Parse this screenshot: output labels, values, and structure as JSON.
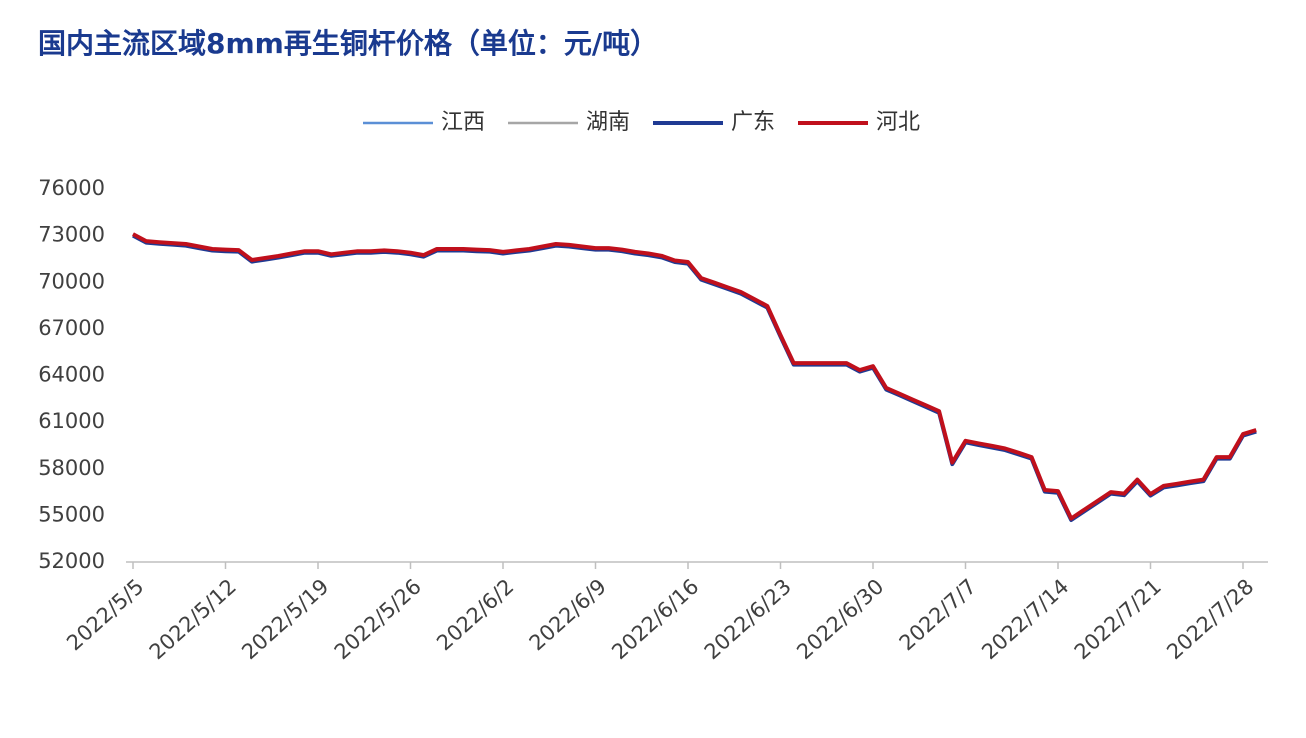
{
  "chart_data": {
    "type": "line",
    "title": "国内主流区域8mm再生铜杆价格（单位：元/吨）",
    "categories": [
      "2022/5/5",
      null,
      null,
      null,
      null,
      null,
      null,
      "2022/5/12",
      null,
      null,
      null,
      null,
      null,
      null,
      "2022/5/19",
      null,
      null,
      null,
      null,
      null,
      null,
      "2022/5/26",
      null,
      null,
      null,
      null,
      null,
      null,
      "2022/6/2",
      null,
      null,
      null,
      null,
      null,
      null,
      "2022/6/9",
      null,
      null,
      null,
      null,
      null,
      null,
      "2022/6/16",
      null,
      null,
      null,
      null,
      null,
      null,
      "2022/6/23",
      null,
      null,
      null,
      null,
      null,
      null,
      "2022/6/30",
      null,
      null,
      null,
      null,
      null,
      null,
      "2022/7/7",
      null,
      null,
      null,
      null,
      null,
      null,
      "2022/7/14",
      null,
      null,
      null,
      null,
      null,
      null,
      "2022/7/21",
      null,
      null,
      null,
      null,
      null,
      null,
      "2022/7/28",
      null
    ],
    "series": [
      {
        "name": "江西",
        "color": "#5b8fd6",
        "values": [
          73100,
          72650,
          72580,
          72520,
          72460,
          72300,
          72140,
          72100,
          72070,
          71430,
          71560,
          71690,
          71850,
          72000,
          72000,
          71800,
          71900,
          72000,
          72000,
          72050,
          72000,
          71900,
          71750,
          72140,
          72140,
          72140,
          72100,
          72070,
          71950,
          72050,
          72140,
          72300,
          72460,
          72400,
          72300,
          72200,
          72200,
          72100,
          71950,
          71850,
          71700,
          71400,
          71300,
          70270,
          69970,
          69670,
          69370,
          68920,
          68470,
          66600,
          64800,
          64800,
          64800,
          64800,
          64800,
          64350,
          64600,
          63200,
          62830,
          62450,
          62080,
          61700,
          58400,
          59800,
          59630,
          59470,
          59300,
          59030,
          58750,
          56630,
          56560,
          54800,
          55370,
          55930,
          56500,
          56400,
          57300,
          56370,
          56900,
          57030,
          57170,
          57300,
          58750,
          58750,
          60230,
          60490
        ]
      },
      {
        "name": "湖南",
        "color": "#a6a6a6",
        "values": [
          73100,
          72650,
          72580,
          72520,
          72460,
          72300,
          72140,
          72100,
          72070,
          71430,
          71560,
          71690,
          71850,
          72000,
          72000,
          71800,
          71900,
          72000,
          72000,
          72050,
          72000,
          71900,
          71750,
          72140,
          72140,
          72140,
          72100,
          72070,
          71950,
          72050,
          72140,
          72300,
          72460,
          72400,
          72300,
          72200,
          72200,
          72100,
          71950,
          71850,
          71700,
          71400,
          71300,
          70270,
          69970,
          69670,
          69370,
          68920,
          68470,
          66600,
          64800,
          64800,
          64800,
          64800,
          64800,
          64350,
          64600,
          63200,
          62830,
          62450,
          62080,
          61700,
          58400,
          59800,
          59630,
          59470,
          59300,
          59030,
          58750,
          56630,
          56560,
          54800,
          55370,
          55930,
          56500,
          56400,
          57300,
          56370,
          56900,
          57030,
          57170,
          57300,
          58750,
          58750,
          60230,
          60490
        ]
      },
      {
        "name": "广东",
        "color": "#1f3a93",
        "values": [
          73000,
          72550,
          72480,
          72420,
          72360,
          72200,
          72040,
          72000,
          71970,
          71330,
          71460,
          71590,
          71750,
          71900,
          71900,
          71700,
          71800,
          71900,
          71900,
          71950,
          71900,
          71800,
          71650,
          72040,
          72040,
          72040,
          72000,
          71970,
          71850,
          71950,
          72040,
          72200,
          72360,
          72300,
          72200,
          72100,
          72100,
          72000,
          71850,
          71750,
          71600,
          71300,
          71200,
          70170,
          69870,
          69570,
          69270,
          68820,
          68370,
          66500,
          64700,
          64700,
          64700,
          64700,
          64700,
          64250,
          64500,
          63100,
          62730,
          62350,
          61980,
          61600,
          58300,
          59700,
          59530,
          59370,
          59200,
          58930,
          58650,
          56530,
          56460,
          54700,
          55270,
          55830,
          56400,
          56300,
          57200,
          56270,
          56800,
          56930,
          57070,
          57200,
          58650,
          58650,
          60130,
          60390
        ]
      },
      {
        "name": "河北",
        "color": "#c0101c",
        "values": [
          73100,
          72650,
          72580,
          72520,
          72460,
          72300,
          72140,
          72100,
          72070,
          71430,
          71560,
          71690,
          71850,
          72000,
          72000,
          71800,
          71900,
          72000,
          72000,
          72050,
          72000,
          71900,
          71750,
          72140,
          72140,
          72140,
          72100,
          72070,
          71950,
          72050,
          72140,
          72300,
          72460,
          72400,
          72300,
          72200,
          72200,
          72100,
          71950,
          71850,
          71700,
          71400,
          71300,
          70270,
          69970,
          69670,
          69370,
          68920,
          68470,
          66600,
          64800,
          64800,
          64800,
          64800,
          64800,
          64350,
          64600,
          63200,
          62830,
          62450,
          62080,
          61700,
          58400,
          59800,
          59630,
          59470,
          59300,
          59030,
          58750,
          56630,
          56560,
          54800,
          55370,
          55930,
          56500,
          56400,
          57300,
          56370,
          56900,
          57030,
          57170,
          57300,
          58750,
          58750,
          60230,
          60490
        ]
      }
    ],
    "ylim": [
      52000,
      76000
    ],
    "yticks": [
      52000,
      55000,
      58000,
      61000,
      64000,
      67000,
      70000,
      73000,
      76000
    ],
    "legend": "top",
    "grid": false
  }
}
